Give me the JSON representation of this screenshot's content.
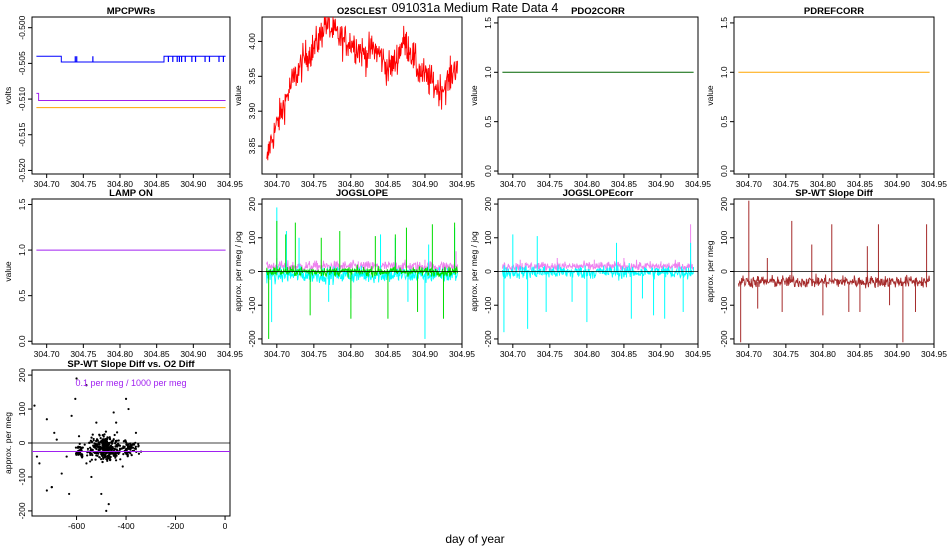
{
  "figure": {
    "title": "091031a   Medium Rate Data 4",
    "footer": "day of year"
  },
  "chart_data": [
    {
      "type": "line",
      "title": "MPCPWRs",
      "xlabel": "",
      "ylabel": "volts",
      "xlim": [
        304.68,
        304.95
      ],
      "ylim": [
        -0.5205,
        -0.4985
      ],
      "xticks": [
        304.7,
        304.75,
        304.8,
        304.85,
        304.9,
        304.95
      ],
      "yticks": [
        -0.52,
        -0.515,
        -0.51,
        -0.505,
        -0.5
      ],
      "grid": false,
      "series": [
        {
          "color": "#0000ff",
          "style": "step",
          "x": [
            304.686,
            304.72,
            304.72,
            304.86,
            304.86,
            304.944
          ],
          "y": [
            -0.504,
            -0.504,
            -0.5048,
            -0.5048,
            -0.504,
            -0.504
          ],
          "spikes": {
            "x": [
              304.739,
              304.741,
              304.763,
              304.866,
              304.872,
              304.878,
              304.881,
              304.884,
              304.889,
              304.898,
              304.903,
              304.916,
              304.922,
              304.935,
              304.941
            ],
            "y": -0.504,
            "y_alt": -0.5048
          }
        },
        {
          "color": "#a020f0",
          "style": "step",
          "x": [
            304.686,
            304.689,
            304.689,
            304.944
          ],
          "y": [
            -0.5092,
            -0.5092,
            -0.5102,
            -0.5102
          ]
        },
        {
          "color": "#ffa500",
          "style": "line",
          "x": [
            304.686,
            304.944
          ],
          "y": [
            -0.5112,
            -0.5112
          ]
        }
      ]
    },
    {
      "type": "line",
      "title": "O2SCLEST",
      "xlabel": "",
      "ylabel": "value",
      "xlim": [
        304.68,
        304.95
      ],
      "ylim": [
        3.81,
        4.035
      ],
      "xticks": [
        304.7,
        304.75,
        304.8,
        304.85,
        304.9,
        304.95
      ],
      "yticks": [
        3.85,
        3.9,
        3.95,
        4.0
      ],
      "grid": false,
      "noise": 0.012,
      "series": [
        {
          "color": "#ff0000",
          "x": [
            304.686,
            304.69,
            304.7,
            304.71,
            304.72,
            304.73,
            304.74,
            304.75,
            304.76,
            304.765,
            304.77,
            304.78,
            304.79,
            304.8,
            304.81,
            304.82,
            304.83,
            304.84,
            304.85,
            304.86,
            304.87,
            304.88,
            304.89,
            304.9,
            304.91,
            304.92,
            304.93,
            304.944
          ],
          "y": [
            3.82,
            3.85,
            3.88,
            3.91,
            3.94,
            3.96,
            3.98,
            3.99,
            4.01,
            4.03,
            4.02,
            4.01,
            4.0,
            4.0,
            3.99,
            3.98,
            3.99,
            3.98,
            3.96,
            3.97,
            4.0,
            3.99,
            3.96,
            3.95,
            3.94,
            3.93,
            3.94,
            3.97
          ]
        }
      ]
    },
    {
      "type": "line",
      "title": "PDO2CORR",
      "xlabel": "",
      "ylabel": "value",
      "xlim": [
        304.68,
        304.95
      ],
      "ylim": [
        -0.03,
        1.56
      ],
      "xticks": [
        304.7,
        304.75,
        304.8,
        304.85,
        304.9,
        304.95
      ],
      "yticks": [
        0.0,
        0.5,
        1.0,
        1.5
      ],
      "grid": false,
      "series": [
        {
          "color": "#006400",
          "x": [
            304.686,
            304.944
          ],
          "y": [
            1.0,
            1.0
          ]
        }
      ]
    },
    {
      "type": "line",
      "title": "PDREFCORR",
      "xlabel": "",
      "ylabel": "value",
      "xlim": [
        304.68,
        304.95
      ],
      "ylim": [
        -0.03,
        1.56
      ],
      "xticks": [
        304.7,
        304.75,
        304.8,
        304.85,
        304.9,
        304.95
      ],
      "yticks": [
        0.0,
        0.5,
        1.0,
        1.5
      ],
      "grid": false,
      "series": [
        {
          "color": "#ffa500",
          "x": [
            304.686,
            304.944
          ],
          "y": [
            1.0,
            1.0
          ]
        }
      ]
    },
    {
      "type": "line",
      "title": "LAMP ON",
      "xlabel": "",
      "ylabel": "value",
      "xlim": [
        304.68,
        304.95
      ],
      "ylim": [
        -0.03,
        1.56
      ],
      "xticks": [
        304.7,
        304.75,
        304.8,
        304.85,
        304.9,
        304.95
      ],
      "yticks": [
        0.0,
        0.5,
        1.0,
        1.5
      ],
      "grid": false,
      "series": [
        {
          "color": "#a020f0",
          "x": [
            304.686,
            304.944
          ],
          "y": [
            1.0,
            1.0
          ]
        }
      ]
    },
    {
      "type": "line",
      "title": "JOGSLOPE",
      "xlabel": "",
      "ylabel": "approx. per meg / jog",
      "xlim": [
        304.68,
        304.95
      ],
      "ylim": [
        -215,
        215
      ],
      "xticks": [
        304.7,
        304.75,
        304.8,
        304.85,
        304.9,
        304.95
      ],
      "yticks": [
        -200,
        -100,
        0,
        100,
        200
      ],
      "grid": false,
      "series": [
        {
          "color": "#ee82ee",
          "x": [
            304.686,
            304.944
          ],
          "y": [
            15,
            15
          ],
          "noise": 8,
          "spikes": {
            "x": [
              304.7,
              304.76,
              304.81,
              304.86,
              304.9,
              304.942
            ],
            "y": [
              40,
              35,
              30,
              45,
              35,
              60
            ]
          }
        },
        {
          "color": "#00ffff",
          "x": [
            304.686,
            304.944
          ],
          "y": [
            -10,
            -10
          ],
          "noise": 12,
          "spikes": {
            "x": [
              304.693,
              304.7,
              304.713,
              304.73,
              304.77,
              304.8,
              304.84,
              304.86,
              304.877,
              304.9,
              304.905,
              304.94
            ],
            "y": [
              -150,
              190,
              120,
              100,
              -90,
              -80,
              110,
              100,
              -90,
              -200,
              80,
              130
            ]
          }
        },
        {
          "color": "#00dd00",
          "x": [
            304.686,
            304.944
          ],
          "y": [
            0,
            0
          ],
          "noise": 7,
          "spikes": {
            "x": [
              304.689,
              304.7,
              304.712,
              304.725,
              304.745,
              304.76,
              304.785,
              304.8,
              304.833,
              304.85,
              304.86,
              304.875,
              304.89,
              304.91,
              304.925,
              304.94
            ],
            "y": [
              -200,
              150,
              110,
              145,
              -130,
              100,
              120,
              -140,
              105,
              -140,
              110,
              130,
              -120,
              140,
              -140,
              145
            ]
          }
        }
      ],
      "hline": 0
    },
    {
      "type": "line",
      "title": "JOGSLOPEcorr",
      "xlabel": "",
      "ylabel": "approx. per meg / jog",
      "xlim": [
        304.68,
        304.95
      ],
      "ylim": [
        -215,
        215
      ],
      "xticks": [
        304.7,
        304.75,
        304.8,
        304.85,
        304.9,
        304.95
      ],
      "yticks": [
        -200,
        -100,
        0,
        100,
        200
      ],
      "grid": false,
      "series": [
        {
          "color": "#ee82ee",
          "x": [
            304.686,
            304.944
          ],
          "y": [
            15,
            15
          ],
          "noise": 7,
          "spikes": {
            "x": [
              304.71,
              304.76,
              304.81,
              304.85,
              304.9,
              304.94
            ],
            "y": [
              35,
              40,
              35,
              40,
              30,
              140
            ]
          }
        },
        {
          "color": "#00ffff",
          "x": [
            304.686,
            304.944
          ],
          "y": [
            -2,
            -2
          ],
          "noise": 10,
          "spikes": {
            "x": [
              304.688,
              304.7,
              304.72,
              304.733,
              304.745,
              304.78,
              304.8,
              304.84,
              304.86,
              304.875,
              304.89,
              304.905,
              304.93,
              304.94
            ],
            "y": [
              -180,
              110,
              -170,
              105,
              -120,
              -90,
              -150,
              85,
              -140,
              -80,
              -130,
              -140,
              -120,
              85
            ]
          }
        }
      ],
      "hline": 0
    },
    {
      "type": "line",
      "title": "SP-WT Slope Diff",
      "xlabel": "",
      "ylabel": "approx. per meg",
      "xlim": [
        304.68,
        304.95
      ],
      "ylim": [
        -215,
        215
      ],
      "xticks": [
        304.7,
        304.75,
        304.8,
        304.85,
        304.9,
        304.95
      ],
      "yticks": [
        -200,
        -100,
        0,
        100,
        200
      ],
      "grid": false,
      "series": [
        {
          "color": "#a52a2a",
          "x": [
            304.686,
            304.944
          ],
          "y": [
            -30,
            -30
          ],
          "noise": 9,
          "spikes": {
            "x": [
              304.689,
              304.7,
              304.712,
              304.725,
              304.745,
              304.758,
              304.785,
              304.8,
              304.812,
              304.835,
              304.85,
              304.86,
              304.875,
              304.89,
              304.908,
              304.925,
              304.94
            ],
            "y": [
              -210,
              210,
              -110,
              40,
              -120,
              150,
              80,
              -130,
              140,
              -120,
              -120,
              75,
              140,
              -100,
              -210,
              -120,
              140
            ]
          }
        }
      ],
      "hline": 0
    },
    {
      "type": "scatter",
      "title": "SP-WT Slope Diff vs. O2 Diff",
      "annotation": "0.1 per meg / 1000 per meg",
      "xlabel": "",
      "ylabel": "approx. per meg",
      "xlim": [
        -780,
        20
      ],
      "ylim": [
        -215,
        215
      ],
      "xticks": [
        -600,
        -400,
        -200,
        0
      ],
      "yticks": [
        -200,
        -100,
        0,
        100,
        200
      ],
      "grid": false,
      "point_color": "#000000",
      "fit_line": {
        "color": "#a020f0",
        "slope": 0.0001,
        "intercept": -25
      },
      "hline": 0,
      "clusters": [
        {
          "x": [
            -600,
            -575
          ],
          "y": [
            -40,
            -10
          ],
          "n": 50
        },
        {
          "x": [
            -540,
            -430
          ],
          "y": [
            -45,
            15
          ],
          "n": 320
        },
        {
          "x": [
            -420,
            -350
          ],
          "y": [
            -35,
            5
          ],
          "n": 70
        }
      ],
      "outliers": {
        "x": [
          -770,
          -750,
          -720,
          -700,
          -690,
          -660,
          -640,
          -620,
          -605,
          -590,
          -560,
          -540,
          -520,
          -480,
          -470,
          -450,
          -400,
          -390,
          -360,
          -630,
          -700,
          -720,
          -760,
          -560,
          -600,
          -500,
          -440,
          -680
        ],
        "y": [
          110,
          -60,
          70,
          -130,
          30,
          -90,
          -40,
          80,
          130,
          20,
          170,
          -100,
          60,
          -200,
          -180,
          90,
          130,
          100,
          30,
          -150,
          -130,
          -140,
          -40,
          -60,
          190,
          -150,
          60,
          10
        ]
      }
    }
  ]
}
